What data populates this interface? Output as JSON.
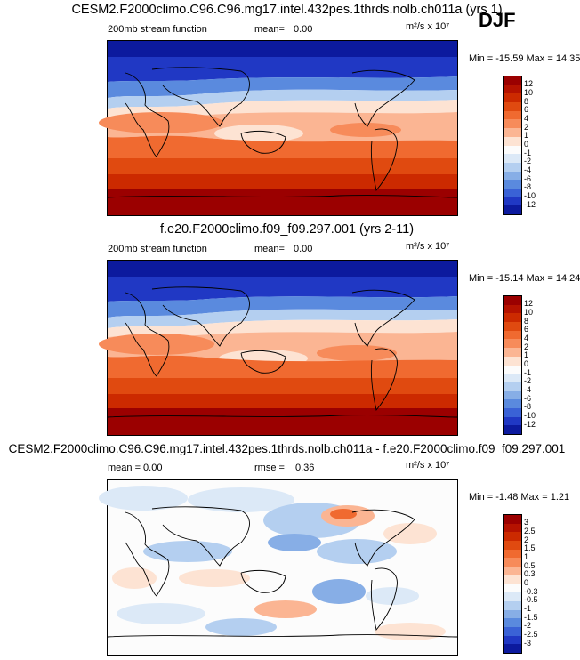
{
  "season": "DJF",
  "panels": [
    {
      "title": "CESM2.F2000climo.C96.C96.mg17.intel.432pes.1thrds.nolb.ch011a (yrs 1)",
      "left_label": "200mb stream function",
      "stat_label": "mean=",
      "stat_value": "0.00",
      "units": "m²/s x 10⁷",
      "minmax": "Min = -15.59 Max =  14.35",
      "colorbar_labels": [
        "12",
        "10",
        "8",
        "6",
        "4",
        "2",
        "1",
        "0",
        "-1",
        "-2",
        "-4",
        "-6",
        "-8",
        "-10",
        "-12"
      ]
    },
    {
      "title": "f.e20.F2000climo.f09_f09.297.001 (yrs 2-11)",
      "left_label": "200mb stream function",
      "stat_label": "mean=",
      "stat_value": "0.00",
      "units": "m²/s x 10⁷",
      "minmax": "Min = -15.14 Max =  14.24",
      "colorbar_labels": [
        "12",
        "10",
        "8",
        "6",
        "4",
        "2",
        "1",
        "0",
        "-1",
        "-2",
        "-4",
        "-6",
        "-8",
        "-10",
        "-12"
      ]
    },
    {
      "title": "CESM2.F2000climo.C96.C96.mg17.intel.432pes.1thrds.nolb.ch011a - f.e20.F2000climo.f09_f09.297.001",
      "left_label": "mean =   0.00",
      "stat_label": "rmse =",
      "stat_value": "0.36",
      "units": "m²/s x 10⁷",
      "minmax": "Min =  -1.48 Max =   1.21",
      "colorbar_labels": [
        "3",
        "2.5",
        "2",
        "1.5",
        "1",
        "0.5",
        "0.3",
        "0",
        "-0.3",
        "-0.5",
        "-1",
        "-1.5",
        "-2",
        "-2.5",
        "-3"
      ]
    }
  ],
  "colors": {
    "field_scale": [
      "#9b0000",
      "#b51200",
      "#cc2a00",
      "#e04a10",
      "#f06a30",
      "#f78b5a",
      "#fbb593",
      "#fde3d3",
      "#fcfcfc",
      "#dce9f7",
      "#b4cff0",
      "#87aee6",
      "#5a8ade",
      "#3a62d6",
      "#2038c4",
      "#0c1a9e"
    ],
    "diff_scale": [
      "#9b0000",
      "#b51200",
      "#cc2a00",
      "#e04a10",
      "#f06a30",
      "#f78b5a",
      "#fbb593",
      "#fde3d3",
      "#fcfcfc",
      "#dce9f7",
      "#b4cff0",
      "#87aee6",
      "#5a8ade",
      "#3a62d6",
      "#2038c4",
      "#0c1a9e"
    ]
  }
}
